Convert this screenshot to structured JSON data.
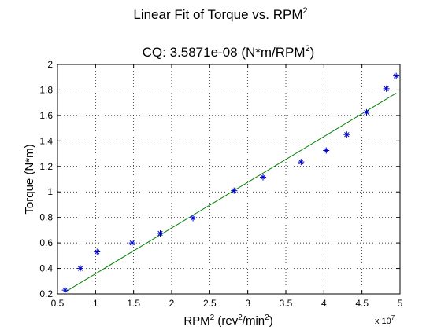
{
  "chart_data": {
    "type": "scatter",
    "title": {
      "line1": "Linear Fit of Torque vs. RPM",
      "line1_sup": "2",
      "line2_prefix": "CQ: 3.5871e-08 (N*m/RPM",
      "line2_sup": "2",
      "line2_suffix": ")"
    },
    "xlabel": {
      "part1": "RPM",
      "sup1": "2",
      "part2": " (rev",
      "sup2": "2",
      "part3": "/min",
      "sup3": "2",
      "part4": ")"
    },
    "ylabel": "Torque (N*m)",
    "x_multiplier": {
      "base": "x 10",
      "exp": "7"
    },
    "xlim": [
      0.5,
      5
    ],
    "ylim": [
      0.2,
      2
    ],
    "xticks": [
      0.5,
      1,
      1.5,
      2,
      2.5,
      3,
      3.5,
      4,
      4.5,
      5
    ],
    "xtick_labels": [
      "0.5",
      "1",
      "1.5",
      "2",
      "2.5",
      "3",
      "3.5",
      "4",
      "4.5",
      "5"
    ],
    "yticks": [
      0.2,
      0.4,
      0.6,
      0.8,
      1,
      1.2,
      1.4,
      1.6,
      1.8,
      2
    ],
    "ytick_labels": [
      "0.2",
      "0.4",
      "0.6",
      "0.8",
      "1",
      "1.2",
      "1.4",
      "1.6",
      "1.8",
      "2"
    ],
    "grid": true,
    "series": [
      {
        "kind": "scatter",
        "marker": "*",
        "color": "#0000cc",
        "x": [
          0.6,
          0.8,
          1.02,
          1.48,
          1.85,
          2.28,
          2.82,
          3.2,
          3.7,
          4.03,
          4.3,
          4.56,
          4.82,
          4.95
        ],
        "y": [
          0.23,
          0.4,
          0.53,
          0.6,
          0.675,
          0.795,
          1.01,
          1.115,
          1.235,
          1.325,
          1.45,
          1.625,
          1.81,
          1.91
        ]
      },
      {
        "kind": "line",
        "color": "#008000",
        "x": [
          0.6,
          4.95
        ],
        "y": [
          0.215,
          1.775
        ]
      }
    ]
  }
}
